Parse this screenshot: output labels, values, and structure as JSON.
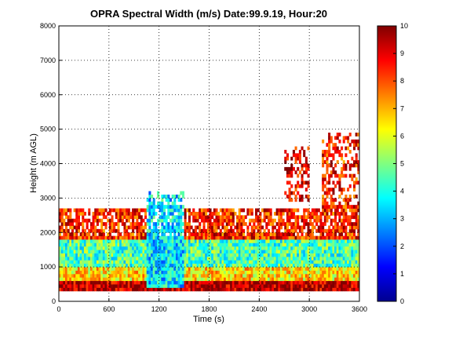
{
  "chart_data": {
    "type": "heatmap",
    "title": "OPRA Spectral Width (m/s)  Date:99.9.19, Hour:20",
    "xlabel": "Time (s)",
    "ylabel": "Height (m AGL)",
    "xlim": [
      0,
      3600
    ],
    "ylim": [
      0,
      8000
    ],
    "xticks": [
      0,
      600,
      1200,
      1800,
      2400,
      3000,
      3600
    ],
    "yticks": [
      0,
      1000,
      2000,
      3000,
      4000,
      5000,
      6000,
      7000,
      8000
    ],
    "grid": true,
    "colorbar": {
      "min": 0,
      "max": 10,
      "ticks": [
        0,
        1,
        2,
        3,
        4,
        5,
        6,
        7,
        8,
        9,
        10
      ],
      "colormap": "jet",
      "colors": [
        "#00008f",
        "#0000ff",
        "#0080ff",
        "#00ffff",
        "#80ff80",
        "#ffff00",
        "#ff8000",
        "#ff0000",
        "#800000"
      ]
    },
    "regions": [
      {
        "x": [
          0,
          3600
        ],
        "height": [
          300,
          600
        ],
        "value": 9.5
      },
      {
        "x": [
          0,
          3600
        ],
        "height": [
          600,
          1000
        ],
        "value": 6.5
      },
      {
        "x": [
          0,
          3600
        ],
        "height": [
          1000,
          1800
        ],
        "value": 4.5
      },
      {
        "x": [
          0,
          3600
        ],
        "height": [
          1800,
          2700
        ],
        "value": 8.5
      },
      {
        "x": [
          1050,
          1500
        ],
        "height": [
          400,
          3200
        ],
        "value": 3.5
      },
      {
        "x": [
          2700,
          3000
        ],
        "height": [
          2900,
          4500
        ],
        "value": 9.0
      },
      {
        "x": [
          3150,
          3600
        ],
        "height": [
          2000,
          4900
        ],
        "value": 8.5
      }
    ]
  }
}
